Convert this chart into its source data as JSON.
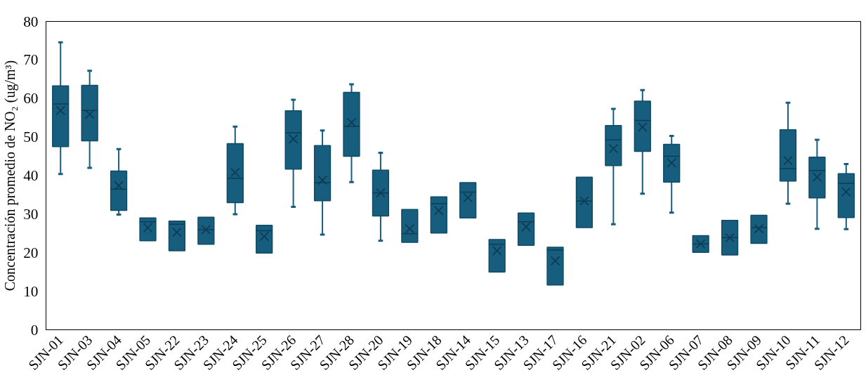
{
  "chart_data": {
    "type": "box",
    "ylabel": "Concentración promedio de NO₂ (ug/m³)",
    "color": "#175e7e",
    "grid": false,
    "ylim": [
      0,
      80
    ],
    "yticks": [
      0,
      10,
      20,
      30,
      40,
      50,
      60,
      70,
      80
    ],
    "categories": [
      "SJN-01",
      "SJN-03",
      "SJN-04",
      "SJN-05",
      "SJN-22",
      "SJN-23",
      "SJN-24",
      "SJN-25",
      "SJN-26",
      "SJN-27",
      "SJN-28",
      "SJN-20",
      "SJN-19",
      "SJN-18",
      "SJN-14",
      "SJN-15",
      "SJN-13",
      "SJN-17",
      "SJN-16",
      "SJN-21",
      "SJN-02",
      "SJN-06",
      "SJN-07",
      "SJN-08",
      "SJN-09",
      "SJN-10",
      "SJN-11",
      "SJN-12"
    ],
    "boxes": [
      {
        "low": 40.4,
        "q1": 47.5,
        "median": 58.6,
        "q3": 63.3,
        "high": 74.6,
        "mean": 56.9
      },
      {
        "low": 42.0,
        "q1": 49.0,
        "median": 56.9,
        "q3": 63.4,
        "high": 67.2,
        "mean": 55.9
      },
      {
        "low": 29.9,
        "q1": 31.0,
        "median": 36.5,
        "q3": 41.2,
        "high": 46.9,
        "mean": 37.4
      },
      {
        "low": 23.1,
        "q1": 23.1,
        "median": 28.0,
        "q3": 29.0,
        "high": 29.0,
        "mean": 26.5
      },
      {
        "low": 20.5,
        "q1": 20.5,
        "median": 27.4,
        "q3": 28.2,
        "high": 28.2,
        "mean": 25.3
      },
      {
        "low": 22.2,
        "q1": 22.2,
        "median": 26.0,
        "q3": 29.2,
        "high": 29.2,
        "mean": 26.0
      },
      {
        "low": 30.0,
        "q1": 33.0,
        "median": 39.3,
        "q3": 48.3,
        "high": 52.7,
        "mean": 40.8
      },
      {
        "low": 19.9,
        "q1": 19.9,
        "median": 25.7,
        "q3": 27.1,
        "high": 27.1,
        "mean": 24.2
      },
      {
        "low": 31.9,
        "q1": 41.7,
        "median": 51.1,
        "q3": 56.8,
        "high": 59.7,
        "mean": 49.5
      },
      {
        "low": 24.7,
        "q1": 33.5,
        "median": 38.2,
        "q3": 47.8,
        "high": 51.7,
        "mean": 38.8
      },
      {
        "low": 38.3,
        "q1": 45.0,
        "median": 52.8,
        "q3": 61.6,
        "high": 63.7,
        "mean": 53.8
      },
      {
        "low": 23.1,
        "q1": 29.5,
        "median": 35.5,
        "q3": 41.4,
        "high": 45.9,
        "mean": 35.5
      },
      {
        "low": 22.7,
        "q1": 22.7,
        "median": 24.9,
        "q3": 31.2,
        "high": 31.2,
        "mean": 26.2
      },
      {
        "low": 25.1,
        "q1": 25.1,
        "median": 32.7,
        "q3": 34.5,
        "high": 34.5,
        "mean": 30.9
      },
      {
        "low": 29.0,
        "q1": 29.0,
        "median": 35.7,
        "q3": 38.2,
        "high": 38.2,
        "mean": 34.3
      },
      {
        "low": 15.0,
        "q1": 15.0,
        "median": 22.2,
        "q3": 23.4,
        "high": 23.4,
        "mean": 20.5
      },
      {
        "low": 21.9,
        "q1": 21.9,
        "median": 28.0,
        "q3": 30.3,
        "high": 30.3,
        "mean": 26.7
      },
      {
        "low": 11.6,
        "q1": 11.6,
        "median": 20.7,
        "q3": 21.4,
        "high": 21.4,
        "mean": 17.9
      },
      {
        "low": 26.5,
        "q1": 26.5,
        "median": 33.4,
        "q3": 39.6,
        "high": 39.6,
        "mean": 33.4
      },
      {
        "low": 27.4,
        "q1": 42.6,
        "median": 49.3,
        "q3": 53.0,
        "high": 57.3,
        "mean": 47.0
      },
      {
        "low": 35.3,
        "q1": 46.3,
        "median": 54.3,
        "q3": 59.3,
        "high": 62.2,
        "mean": 52.6
      },
      {
        "low": 30.4,
        "q1": 38.3,
        "median": 45.0,
        "q3": 48.1,
        "high": 50.3,
        "mean": 43.3
      },
      {
        "low": 20.1,
        "q1": 20.1,
        "median": 22.3,
        "q3": 24.4,
        "high": 24.4,
        "mean": 22.3
      },
      {
        "low": 19.4,
        "q1": 19.4,
        "median": 23.9,
        "q3": 28.4,
        "high": 28.4,
        "mean": 23.9
      },
      {
        "low": 22.4,
        "q1": 22.4,
        "median": 26.5,
        "q3": 29.7,
        "high": 29.7,
        "mean": 26.2
      },
      {
        "low": 32.7,
        "q1": 38.6,
        "median": 41.8,
        "q3": 51.9,
        "high": 58.9,
        "mean": 43.9
      },
      {
        "low": 26.2,
        "q1": 34.2,
        "median": 41.3,
        "q3": 44.8,
        "high": 49.3,
        "mean": 39.6
      },
      {
        "low": 26.1,
        "q1": 29.1,
        "median": 38.0,
        "q3": 40.5,
        "high": 43.0,
        "mean": 35.8
      }
    ]
  }
}
